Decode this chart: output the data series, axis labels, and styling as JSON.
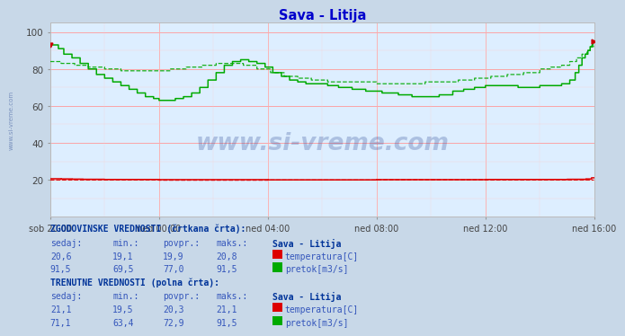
{
  "title": "Sava - Litija",
  "title_color": "#0000cc",
  "bg_color": "#c8d8e8",
  "plot_bg_color": "#ddeeff",
  "grid_h_color": "#ff9999",
  "grid_v_color": "#ffaaaa",
  "x_tick_labels": [
    "sob 20:00",
    "ned 00:00",
    "ned 04:00",
    "ned 08:00",
    "ned 12:00",
    "ned 16:00"
  ],
  "x_tick_positions": [
    0,
    240,
    480,
    720,
    960,
    1200
  ],
  "n": 1200,
  "ylim_min": 0,
  "ylim_max": 105,
  "yticks": [
    20,
    40,
    60,
    80,
    100
  ],
  "temp_color": "#dd0000",
  "flow_color": "#00aa00",
  "label_color": "#3355bb",
  "header_color": "#003399",
  "watermark_color": "#1a3a8a",
  "hist_temp_sedaj": "20,6",
  "hist_temp_min": "19,1",
  "hist_temp_avg": "19,9",
  "hist_temp_max": "20,8",
  "hist_flow_sedaj": "91,5",
  "hist_flow_min": "69,5",
  "hist_flow_avg": "77,0",
  "hist_flow_max": "91,5",
  "curr_temp_sedaj": "21,1",
  "curr_temp_min": "19,5",
  "curr_temp_avg": "20,3",
  "curr_temp_max": "21,1",
  "curr_flow_sedaj": "71,1",
  "curr_flow_min": "63,4",
  "curr_flow_avg": "72,9",
  "curr_flow_max": "91,5"
}
